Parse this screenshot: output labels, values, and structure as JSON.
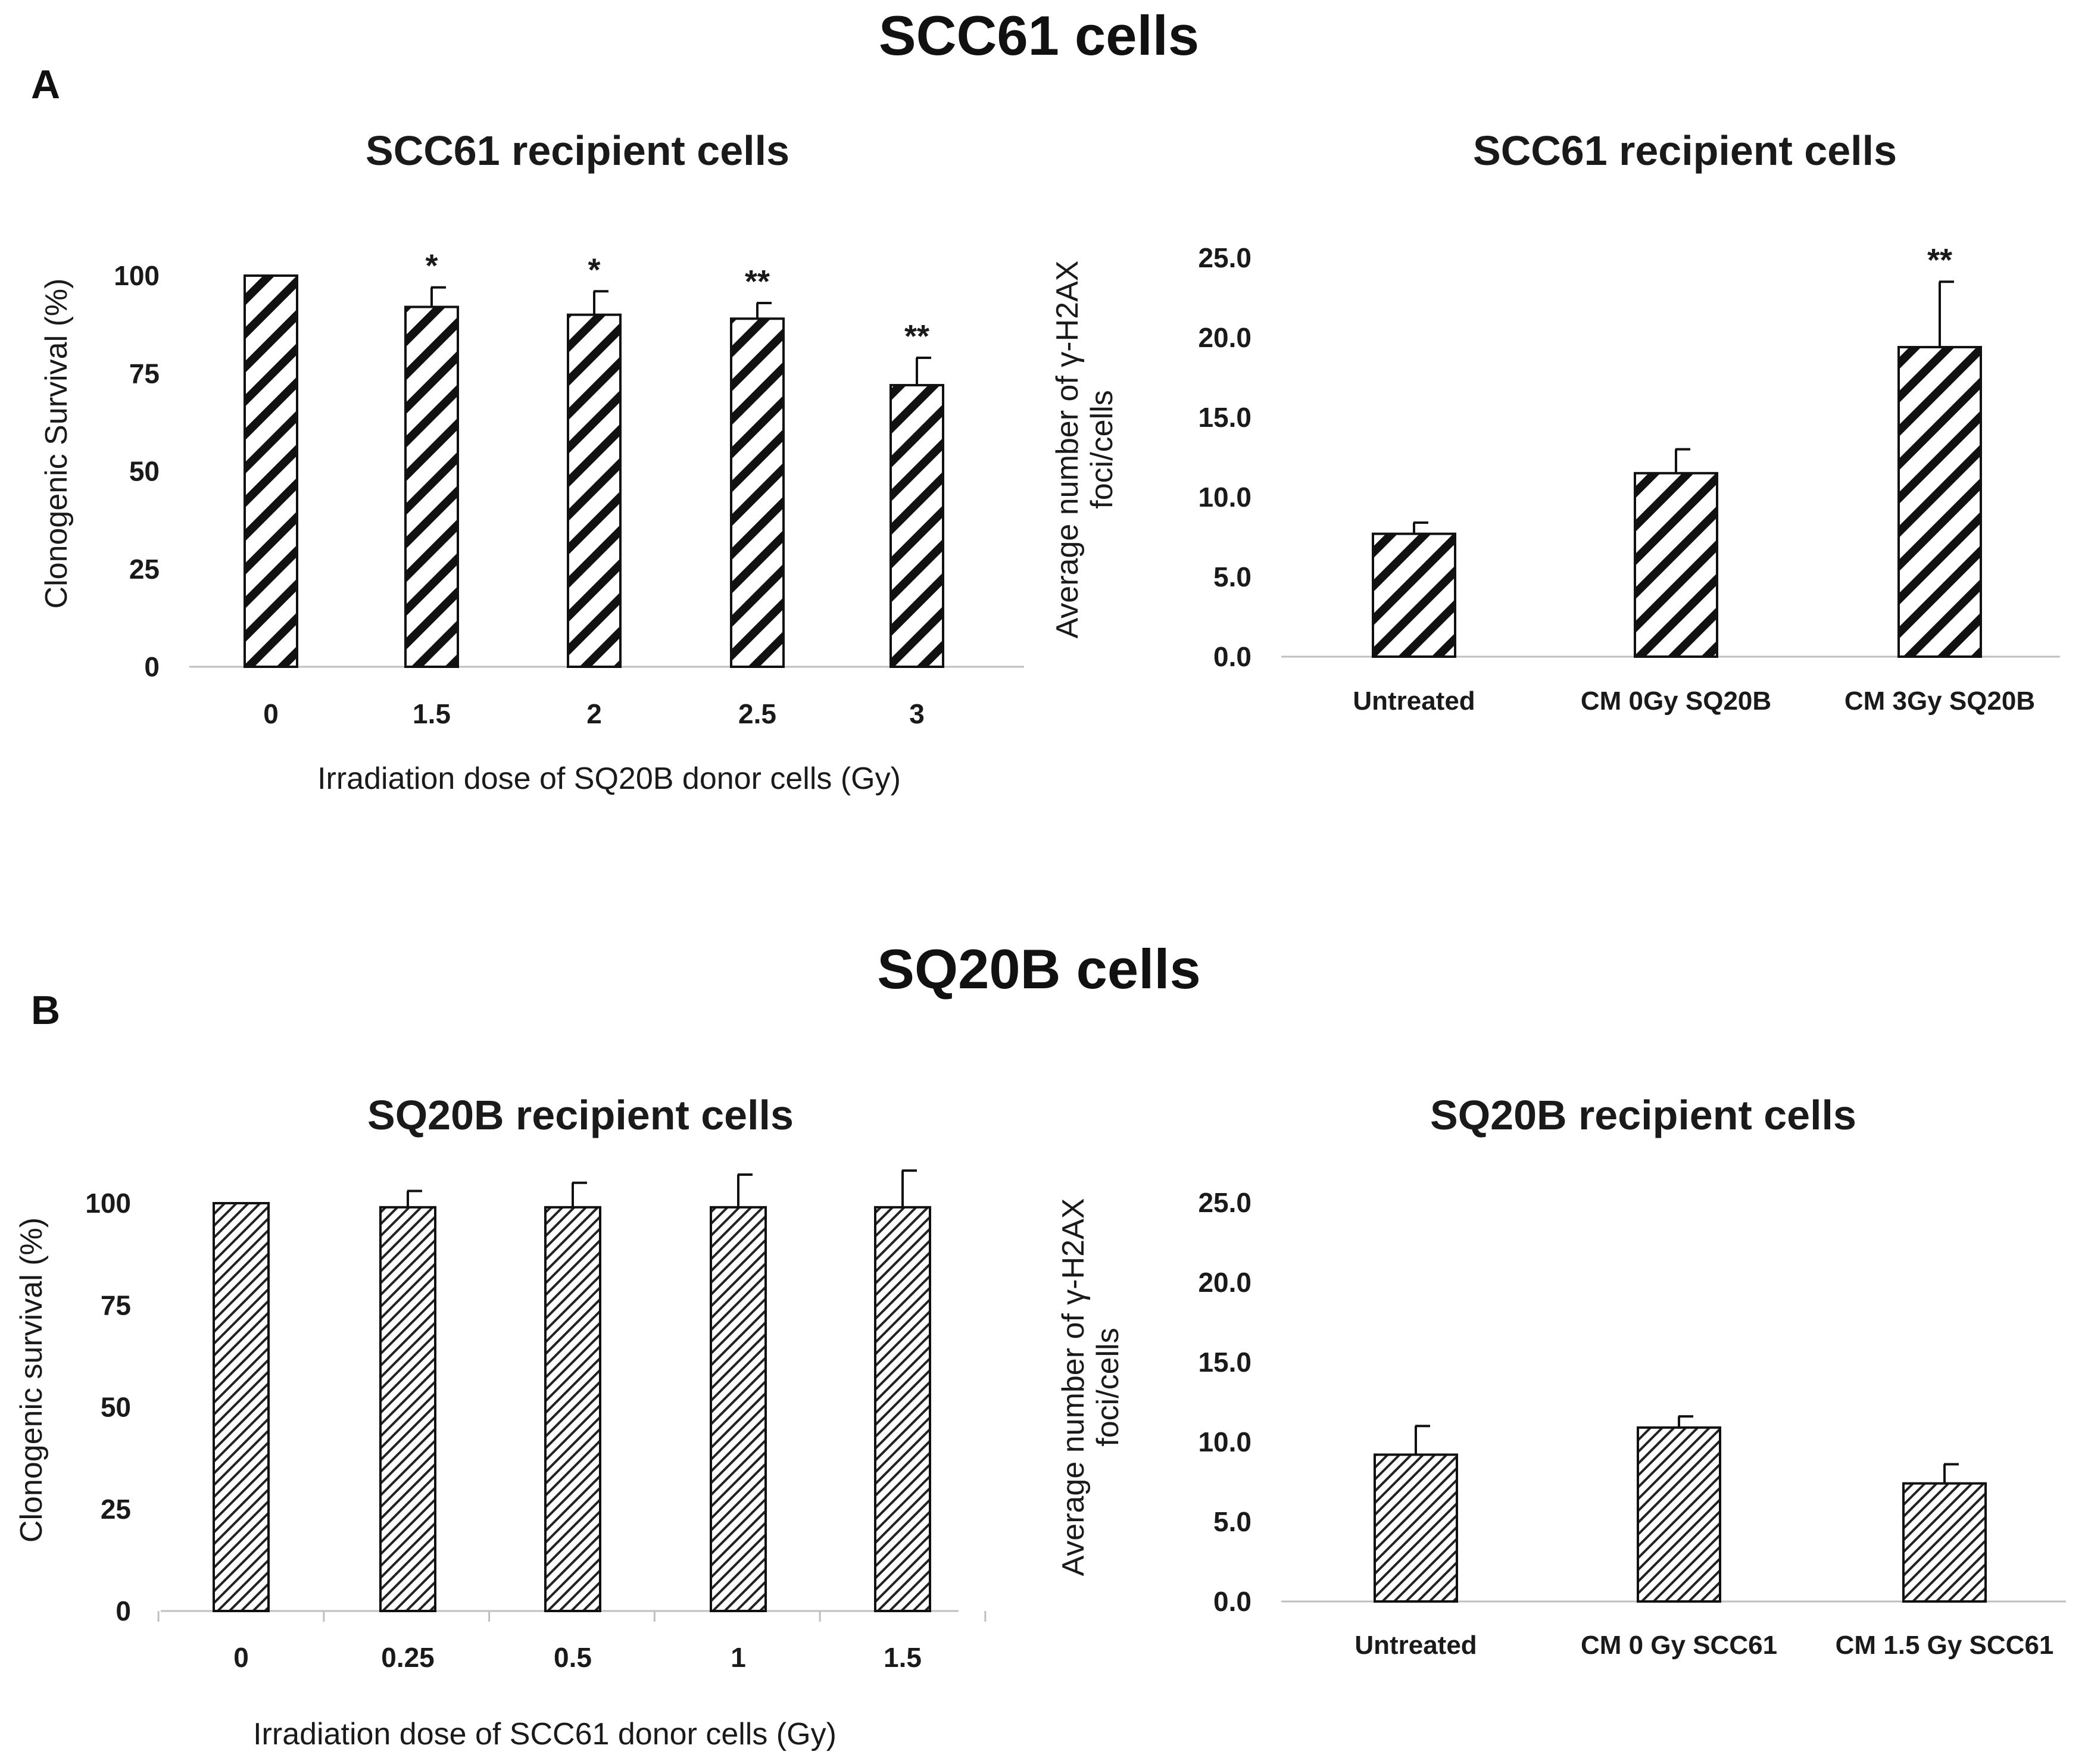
{
  "figure": {
    "section_a_title": "SCC61 cells",
    "section_b_title": "SQ20B cells",
    "panel_a_letter": "A",
    "panel_b_letter": "B"
  },
  "chart_data": [
    {
      "id": "a-left",
      "type": "bar",
      "title": "SCC61 recipient cells",
      "xlabel": "Irradiation dose of SQ20B donor cells (Gy)",
      "ylabel": "Clonogenic Survival (%)",
      "ylim": [
        0,
        100
      ],
      "yticks": [
        "0",
        "25",
        "50",
        "75",
        "100"
      ],
      "categories": [
        "0",
        "1.5",
        "2",
        "2.5",
        "3"
      ],
      "values": [
        100,
        92,
        90,
        89,
        72
      ],
      "errors": [
        0,
        5,
        6,
        4,
        7
      ],
      "significance": [
        "",
        "*",
        "*",
        "**",
        "**"
      ],
      "pattern": "wide-hatch",
      "grid": false,
      "legend": "none"
    },
    {
      "id": "a-right",
      "type": "bar",
      "title": "SCC61 recipient cells",
      "xlabel": "",
      "ylabel": "Average number of γ-H2AX foci/cells",
      "ylim": [
        0,
        25
      ],
      "yticks": [
        "0.0",
        "5.0",
        "10.0",
        "15.0",
        "20.0",
        "25.0"
      ],
      "categories": [
        "Untreated",
        "CM 0Gy SQ20B",
        "CM 3Gy SQ20B"
      ],
      "values": [
        7.7,
        11.5,
        19.4
      ],
      "errors": [
        0.7,
        1.5,
        4.1
      ],
      "significance": [
        "",
        "",
        "**"
      ],
      "pattern": "wide-hatch",
      "grid": false,
      "legend": "none"
    },
    {
      "id": "b-left",
      "type": "bar",
      "title": "SQ20B recipient cells",
      "xlabel": "Irradiation dose of SCC61 donor cells (Gy)",
      "ylabel": "Clonogenic survival (%)",
      "ylim": [
        0,
        100
      ],
      "yticks": [
        "0",
        "25",
        "50",
        "75",
        "100"
      ],
      "categories": [
        "0",
        "0.25",
        "0.5",
        "1",
        "1.5"
      ],
      "values": [
        100,
        99,
        99,
        99,
        99
      ],
      "errors": [
        0,
        4,
        6,
        8,
        9
      ],
      "significance": [
        "",
        "",
        "",
        "",
        ""
      ],
      "pattern": "fine-hatch",
      "grid": false,
      "legend": "none"
    },
    {
      "id": "b-right",
      "type": "bar",
      "title": "SQ20B recipient cells",
      "xlabel": "",
      "ylabel": "Average number of γ-H2AX foci/cells",
      "ylim": [
        0,
        25
      ],
      "yticks": [
        "0.0",
        "5.0",
        "10.0",
        "15.0",
        "20.0",
        "25.0"
      ],
      "categories": [
        "Untreated",
        "CM 0 Gy SCC61",
        "CM 1.5 Gy SCC61"
      ],
      "values": [
        9.2,
        10.9,
        7.4
      ],
      "errors": [
        1.8,
        0.7,
        1.2
      ],
      "significance": [
        "",
        "",
        ""
      ],
      "pattern": "fine-hatch",
      "grid": false,
      "legend": "none"
    }
  ]
}
